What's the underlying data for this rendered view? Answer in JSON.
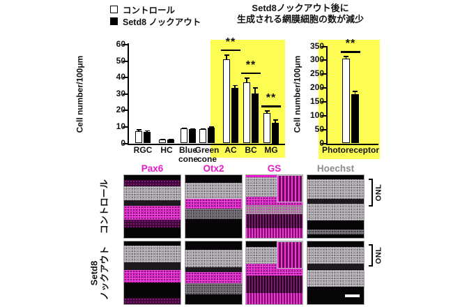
{
  "colors": {
    "highlight": "#fcfc52",
    "marker_magenta": "#e619c8",
    "hoechst_gray": "#8c8c8c",
    "control_fill": "#ffffff",
    "knockout_fill": "#000000"
  },
  "figure": {
    "legend": [
      {
        "label": "コントロール",
        "swatch": "white"
      },
      {
        "label": "Setd8 ノックアウト",
        "swatch": "black"
      }
    ],
    "title_line1": "Setd8ノックアウト後に",
    "title_line2": "生成される網膜細胞の数が減少"
  },
  "chart_data": [
    {
      "type": "bar",
      "title": "",
      "xlabel": "",
      "ylabel": "Cell number/100μm",
      "ylim": [
        0,
        60
      ],
      "yticks": [
        0,
        10,
        20,
        30,
        40,
        50,
        60
      ],
      "grid": false,
      "legend_position": "top-left-of-figure",
      "categories": [
        "RGC",
        "HC",
        "Blue cone",
        "Green cone",
        "AC",
        "BC",
        "MG"
      ],
      "series": [
        {
          "name": "コントロール",
          "values": [
            7.5,
            2.5,
            9,
            8.5,
            51,
            37,
            18.5
          ],
          "errors": [
            1,
            0.4,
            0.5,
            0.5,
            3,
            3,
            1.5
          ]
        },
        {
          "name": "Setd8 ノックアウト",
          "values": [
            7,
            2.3,
            8.7,
            9.7,
            33.5,
            30.5,
            12.5
          ],
          "errors": [
            1,
            0.4,
            0.5,
            0.5,
            2,
            3.5,
            2
          ]
        }
      ],
      "significance": {
        "AC": "**",
        "BC": "**",
        "MG": "**"
      },
      "highlighted_categories": [
        "AC",
        "BC",
        "MG"
      ]
    },
    {
      "type": "bar",
      "title": "",
      "xlabel": "",
      "ylabel": "Cell number/100μm",
      "ylim": [
        0,
        350
      ],
      "yticks": [
        0,
        50,
        100,
        150,
        200,
        250,
        300,
        350
      ],
      "grid": false,
      "categories": [
        "Photoreceptor"
      ],
      "series": [
        {
          "name": "コントロール",
          "values": [
            305
          ],
          "errors": [
            10
          ]
        },
        {
          "name": "Setd8 ノックアウト",
          "values": [
            178
          ],
          "errors": [
            12
          ]
        }
      ],
      "significance": {
        "Photoreceptor": "**"
      },
      "highlighted_categories": [
        "Photoreceptor"
      ]
    }
  ],
  "micrographs": {
    "column_headers": [
      "Pax6",
      "Otx2",
      "GS",
      "Hoechst"
    ],
    "rows": [
      {
        "lines": [
          "コントロール"
        ]
      },
      {
        "lines": [
          "Setd8",
          "ノックアウト"
        ]
      }
    ],
    "onl_label": "ONL"
  }
}
